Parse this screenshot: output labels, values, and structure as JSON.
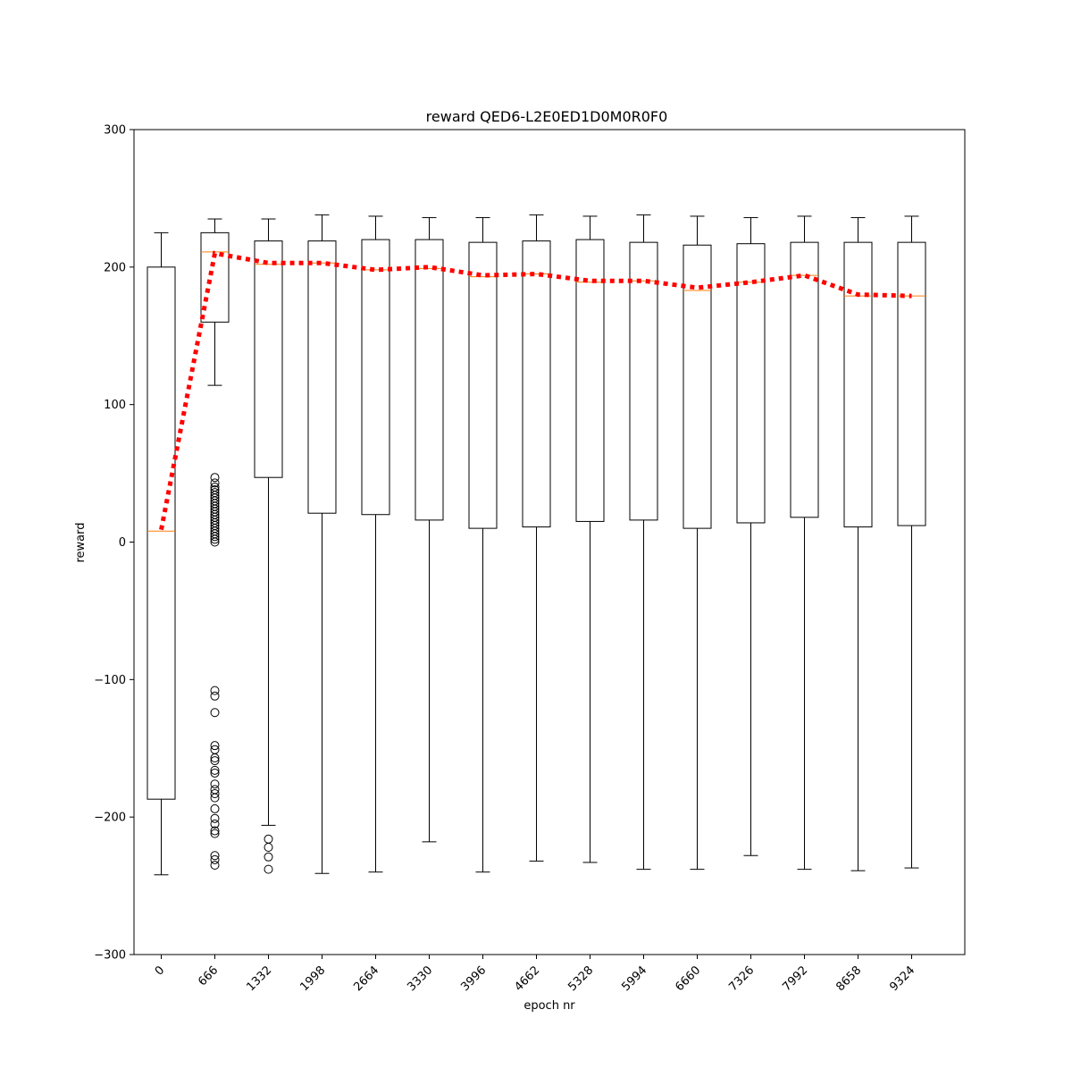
{
  "chart_data": {
    "type": "box",
    "title": "reward QED6-L2E0ED1D0M0R0F0",
    "xlabel": "epoch nr",
    "ylabel": "reward",
    "ylim": [
      -300,
      300
    ],
    "yticks": [
      -300,
      -200,
      -100,
      0,
      100,
      200,
      300
    ],
    "ytick_labels": [
      "−300",
      "−200",
      "−100",
      "0",
      "100",
      "200",
      "300"
    ],
    "categories": [
      "0",
      "666",
      "1332",
      "1998",
      "2664",
      "3330",
      "3996",
      "4662",
      "5328",
      "5994",
      "6660",
      "7326",
      "7992",
      "8658",
      "9324"
    ],
    "boxes": [
      {
        "whislo": -242,
        "q1": -187,
        "med": 8,
        "q3": 200,
        "whishi": 225,
        "fliers": []
      },
      {
        "whislo": 114,
        "q1": 160,
        "med": 211,
        "q3": 225,
        "whishi": 235,
        "fliers": [
          47,
          43,
          40,
          38,
          36,
          34,
          32,
          30,
          28,
          26,
          24,
          22,
          20,
          18,
          16,
          14,
          12,
          10,
          8,
          6,
          4,
          2,
          0,
          -108,
          -112,
          -124,
          -148,
          -151,
          -157,
          -159,
          -166,
          -168,
          -176,
          -180,
          -183,
          -186,
          -194,
          -201,
          -205,
          -210,
          -212,
          -228,
          -231,
          -235
        ]
      },
      {
        "whislo": -206,
        "q1": 47,
        "med": 202,
        "q3": 219,
        "whishi": 235,
        "fliers": [
          -216,
          -222,
          -229,
          -238
        ]
      },
      {
        "whislo": -241,
        "q1": 21,
        "med": 203,
        "q3": 219,
        "whishi": 238,
        "fliers": []
      },
      {
        "whislo": -240,
        "q1": 20,
        "med": 198,
        "q3": 220,
        "whishi": 237,
        "fliers": []
      },
      {
        "whislo": -218,
        "q1": 16,
        "med": 199,
        "q3": 220,
        "whishi": 236,
        "fliers": []
      },
      {
        "whislo": -240,
        "q1": 10,
        "med": 193,
        "q3": 218,
        "whishi": 236,
        "fliers": []
      },
      {
        "whislo": -232,
        "q1": 11,
        "med": 195,
        "q3": 219,
        "whishi": 238,
        "fliers": []
      },
      {
        "whislo": -233,
        "q1": 15,
        "med": 189,
        "q3": 220,
        "whishi": 237,
        "fliers": []
      },
      {
        "whislo": -238,
        "q1": 16,
        "med": 190,
        "q3": 218,
        "whishi": 238,
        "fliers": []
      },
      {
        "whislo": -238,
        "q1": 10,
        "med": 183,
        "q3": 216,
        "whishi": 237,
        "fliers": []
      },
      {
        "whislo": -228,
        "q1": 14,
        "med": 189,
        "q3": 217,
        "whishi": 236,
        "fliers": []
      },
      {
        "whislo": -238,
        "q1": 18,
        "med": 194,
        "q3": 218,
        "whishi": 237,
        "fliers": []
      },
      {
        "whislo": -239,
        "q1": 11,
        "med": 179,
        "q3": 218,
        "whishi": 236,
        "fliers": []
      },
      {
        "whislo": -237,
        "q1": 12,
        "med": 179,
        "q3": 218,
        "whishi": 237,
        "fliers": []
      }
    ],
    "mean_line": {
      "values": [
        9,
        210,
        203,
        203,
        198,
        200,
        194,
        195,
        190,
        190,
        185,
        189,
        194,
        180,
        179
      ],
      "color": "#ff0000",
      "style": "dotted"
    },
    "colors": {
      "box": "#000000",
      "median": "#ff7f0e",
      "mean_line": "#ff0000"
    },
    "grid": false,
    "legend": "none"
  }
}
